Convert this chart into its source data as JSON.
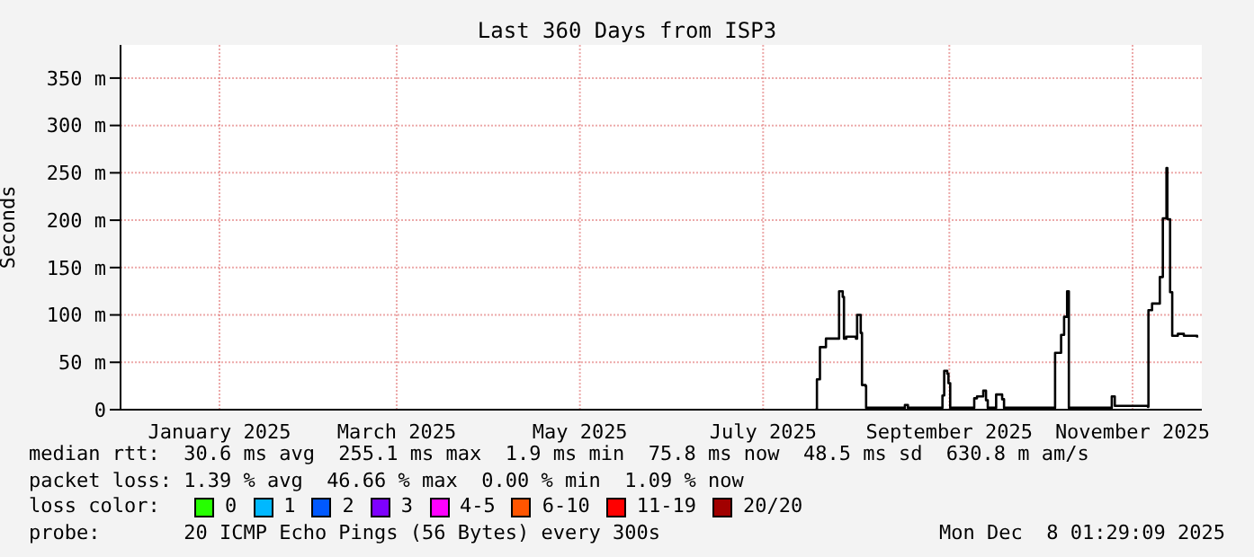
{
  "chart_data": {
    "type": "step",
    "title": "Last 360 Days from ISP3",
    "ylabel": "Seconds",
    "xlim": [
      "2024-12-13T01:29",
      "2025-12-08T01:29"
    ],
    "xticks": [
      {
        "value": "2025-01-15",
        "label": "January 2025"
      },
      {
        "value": "2025-03-15",
        "label": "March 2025"
      },
      {
        "value": "2025-05-15",
        "label": "May 2025"
      },
      {
        "value": "2025-07-15",
        "label": "July 2025"
      },
      {
        "value": "2025-09-15",
        "label": "September 2025"
      },
      {
        "value": "2025-11-15",
        "label": "November 2025"
      }
    ],
    "ylim": [
      0,
      385
    ],
    "yticks": [
      0,
      {
        "value": 50,
        "label": "50 m"
      },
      {
        "value": 100,
        "label": "100 m"
      },
      {
        "value": 150,
        "label": "150 m"
      },
      {
        "value": 200,
        "label": "200 m"
      },
      {
        "value": 250,
        "label": "250 m"
      },
      {
        "value": 300,
        "label": "300 m"
      },
      {
        "value": 350,
        "label": "350 m"
      }
    ],
    "grid": true,
    "marker": "none",
    "line_style": "solid",
    "series": [
      {
        "color": "#000000",
        "x": [
          "2025-08-01T07:00",
          "2025-08-01T22:00",
          "2025-08-02T22:00",
          "2025-08-04T22:00",
          "2025-08-08T22:00",
          "2025-08-09T07:00",
          "2025-08-10T12:00",
          "2025-08-10T22:00",
          "2025-08-11T17:00",
          "2025-08-14T22:00",
          "2025-08-15T07:00",
          "2025-08-16T12:00",
          "2025-08-16T22:00",
          "2025-08-18T02:00",
          "2025-08-18T07:00",
          "2025-08-31T05:00",
          "2025-09-01T05:00",
          "2025-09-12T07:00",
          "2025-09-12T17:00",
          "2025-09-13T07:00",
          "2025-09-14T07:00",
          "2025-09-14T17:00",
          "2025-09-15T07:00",
          "2025-09-22T17:00",
          "2025-09-23T07:00",
          "2025-09-24T05:00",
          "2025-09-26T07:00",
          "2025-09-27T05:00",
          "2025-09-27T19:00",
          "2025-09-29T19:00",
          "2025-09-30T14:00",
          "2025-10-02T14:00",
          "2025-10-03T05:00",
          "2025-10-19T19:00",
          "2025-10-20T05:00",
          "2025-10-22T05:00",
          "2025-10-23T05:00",
          "2025-10-24T05:00",
          "2025-10-24T19:00",
          "2025-11-07T14:00",
          "2025-11-08T02:00",
          "2025-11-09T02:00",
          "2025-11-20T02:00",
          "2025-11-20T07:00",
          "2025-11-21T12:00",
          "2025-11-23T12:00",
          "2025-11-24T02:00",
          "2025-11-25T02:00",
          "2025-11-26T07:00",
          "2025-11-26T14:00",
          "2025-11-27T12:00",
          "2025-11-28T05:00",
          "2025-11-30T02:00",
          "2025-12-02T02:00",
          "2025-12-06T12:00"
        ],
        "values": [
          0,
          32,
          66,
          75,
          75,
          125,
          119,
          75,
          77,
          75,
          100,
          81,
          26,
          25,
          2,
          5,
          2,
          2,
          15,
          41,
          38,
          28,
          2,
          2,
          12,
          14,
          20,
          10,
          2,
          2,
          16,
          11,
          2,
          2,
          60,
          79,
          98,
          125,
          2,
          2,
          14,
          4,
          3,
          105,
          112,
          112,
          140,
          202,
          255,
          201,
          124,
          78,
          80,
          78,
          76
        ]
      }
    ],
    "annotations": [
      "median rtt:  30.6 ms avg  255.1 ms max  1.9 ms min  75.8 ms now  48.5 ms sd  630.8 m am/s",
      "packet loss: 1.39 % avg  46.66 % max  0.00 % min  1.09 % now",
      "loss color:",
      "0",
      "1",
      "2",
      "3",
      "4-5",
      "6-10",
      "11-19",
      "20/20",
      "probe:       20 ICMP Echo Pings (56 Bytes) every 300s",
      "Mon Dec  8 01:29:09 2025"
    ]
  }
}
